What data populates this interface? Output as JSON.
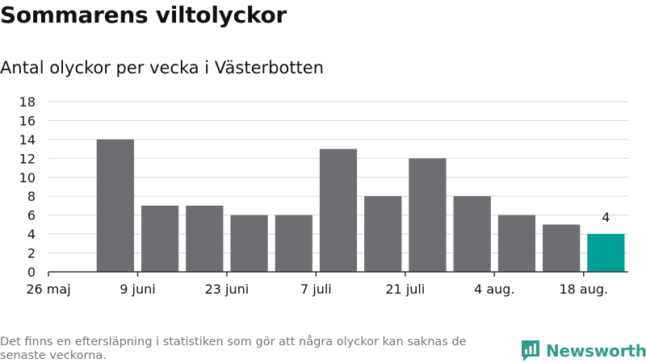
{
  "header": {
    "title": "Sommarens viltolyckor",
    "subtitle": "Antal olyckor per vecka i Västerbotten"
  },
  "footer": {
    "note": "Det finns en eftersläpning i statistiken som gör att några olyckor kan saknas de senaste veckorna.",
    "brand": "Newsworthy"
  },
  "colors": {
    "bar": "#6e6d72",
    "highlight": "#00a096",
    "grid": "#dddddd",
    "axis": "#333333",
    "brand": "#2f9c8a"
  },
  "brand_icon": "newsworthy-logo-icon",
  "chart_data": {
    "type": "bar",
    "title": "Sommarens viltolyckor",
    "subtitle": "Antal olyckor per vecka i Västerbotten",
    "xlabel": "",
    "ylabel": "",
    "x": [
      "2019-05-27",
      "2019-06-03",
      "2019-06-10",
      "2019-06-17",
      "2019-06-24",
      "2019-07-01",
      "2019-07-08",
      "2019-07-15",
      "2019-07-22",
      "2019-07-29",
      "2019-08-05",
      "2019-08-12"
    ],
    "values": [
      14,
      7,
      7,
      6,
      6,
      13,
      8,
      12,
      8,
      6,
      5,
      4
    ],
    "highlight_index": 11,
    "data_labels": [
      {
        "index": 11,
        "text": "4"
      }
    ],
    "ylim": [
      0,
      18
    ],
    "yticks": [
      0,
      2,
      4,
      6,
      8,
      10,
      12,
      14,
      16,
      18
    ],
    "xticks": [
      {
        "x": "2019-05-20",
        "label": "26 maj"
      },
      {
        "x": "2019-06-03",
        "label": "9 juni"
      },
      {
        "x": "2019-06-17",
        "label": "23 juni"
      },
      {
        "x": "2019-07-01",
        "label": "7 juli"
      },
      {
        "x": "2019-07-15",
        "label": "21 juli"
      },
      {
        "x": "2019-07-29",
        "label": "4 aug."
      },
      {
        "x": "2019-08-12",
        "label": "18 aug."
      }
    ],
    "grid": true,
    "legend": "none"
  }
}
